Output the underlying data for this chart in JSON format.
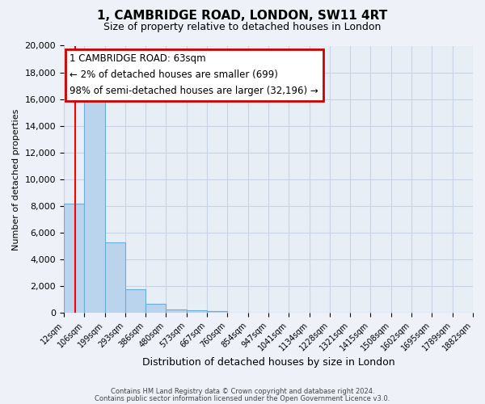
{
  "title": "1, CAMBRIDGE ROAD, LONDON, SW11 4RT",
  "subtitle": "Size of property relative to detached houses in London",
  "bar_values": [
    8200,
    16500,
    5300,
    1800,
    700,
    300,
    200,
    150,
    0,
    0,
    0,
    0,
    0,
    0,
    0,
    0,
    0,
    0,
    0,
    0
  ],
  "bin_labels": [
    "12sqm",
    "106sqm",
    "199sqm",
    "293sqm",
    "386sqm",
    "480sqm",
    "573sqm",
    "667sqm",
    "760sqm",
    "854sqm",
    "947sqm",
    "1041sqm",
    "1134sqm",
    "1228sqm",
    "1321sqm",
    "1415sqm",
    "1508sqm",
    "1602sqm",
    "1695sqm",
    "1789sqm",
    "1882sqm"
  ],
  "bar_color": "#bad4ee",
  "bar_edge_color": "#6aaed6",
  "ylim": [
    0,
    20000
  ],
  "yticks": [
    0,
    2000,
    4000,
    6000,
    8000,
    10000,
    12000,
    14000,
    16000,
    18000,
    20000
  ],
  "xlabel": "Distribution of detached houses by size in London",
  "ylabel": "Number of detached properties",
  "annotation_title": "1 CAMBRIDGE ROAD: 63sqm",
  "annotation_line1": "← 2% of detached houses are smaller (699)",
  "annotation_line2": "98% of semi-detached houses are larger (32,196) →",
  "red_line_x": 0.543,
  "footer1": "Contains HM Land Registry data © Crown copyright and database right 2024.",
  "footer2": "Contains public sector information licensed under the Open Government Licence v3.0.",
  "bg_color": "#eef2f8",
  "plot_bg_color": "#e8eef6",
  "grid_color": "#c8d4e4",
  "annotation_box_color": "#ffffff",
  "annotation_border_color": "#cc0000"
}
